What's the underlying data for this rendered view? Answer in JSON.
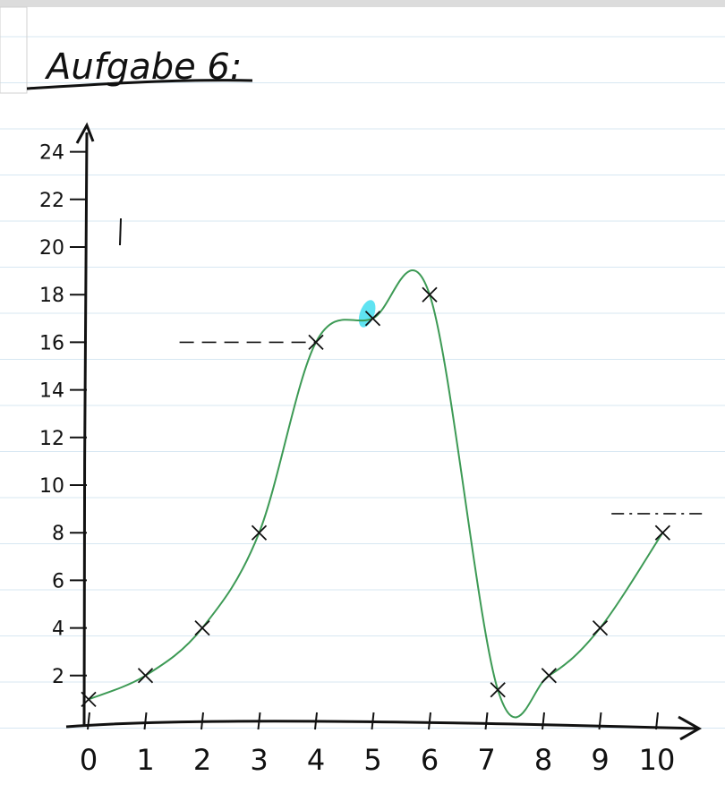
{
  "heading": "Aufgabe 6:",
  "colors": {
    "paper_lines": "#d7e7f2",
    "ink": "#111111",
    "curve": "#3d9a55",
    "highlight": "#5fe3f2"
  },
  "chart_data": {
    "type": "line",
    "title": "",
    "xlabel": "",
    "ylabel": "",
    "x_ticks": [
      "0",
      "1",
      "2",
      "3",
      "4",
      "5",
      "6",
      "7",
      "8",
      "9",
      "10"
    ],
    "y_ticks": [
      "2",
      "4",
      "6",
      "8",
      "10",
      "12",
      "14",
      "16",
      "18",
      "20",
      "22",
      "24"
    ],
    "xlim": [
      0,
      10.8
    ],
    "ylim": [
      0,
      25.5
    ],
    "grid": false,
    "series": [
      {
        "name": "",
        "x": [
          0,
          1,
          2,
          3,
          4,
          5,
          6,
          7.2,
          8.1,
          9,
          10.1
        ],
        "y": [
          1,
          2,
          4,
          8,
          16,
          17,
          18,
          1.4,
          2,
          4,
          8
        ]
      }
    ],
    "reference_lines": [
      {
        "y": 16,
        "x_from": 1.6,
        "x_to": 4.0,
        "style": "dashed"
      },
      {
        "y": 8.8,
        "x_from": 9.2,
        "x_to": 10.8,
        "style": "dash-dot"
      }
    ]
  }
}
